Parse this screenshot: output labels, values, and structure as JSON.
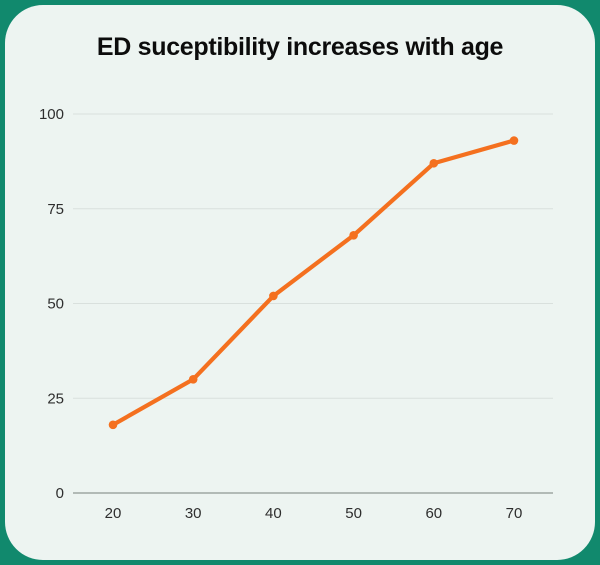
{
  "page": {
    "background_color": "#11896d",
    "card_color": "#edf4f1"
  },
  "chart_data": {
    "type": "line",
    "title": "ED suceptibility increases with age",
    "x": [
      20,
      30,
      40,
      50,
      60,
      70
    ],
    "values": [
      18,
      30,
      52,
      68,
      87,
      93
    ],
    "xticks": [
      "20",
      "30",
      "40",
      "50",
      "60",
      "70"
    ],
    "yticks": [
      0,
      25,
      50,
      75,
      100
    ],
    "ylim": [
      0,
      100
    ],
    "xlabel": "",
    "ylabel": "",
    "grid": true,
    "legend": false,
    "line_color": "#f4701f",
    "marker": "circle",
    "gridline_color": "#d9e0dd",
    "axis_line_color": "#8f9793",
    "tick_text_color": "#2e2e2e",
    "title_color": "#0c0c0c"
  }
}
